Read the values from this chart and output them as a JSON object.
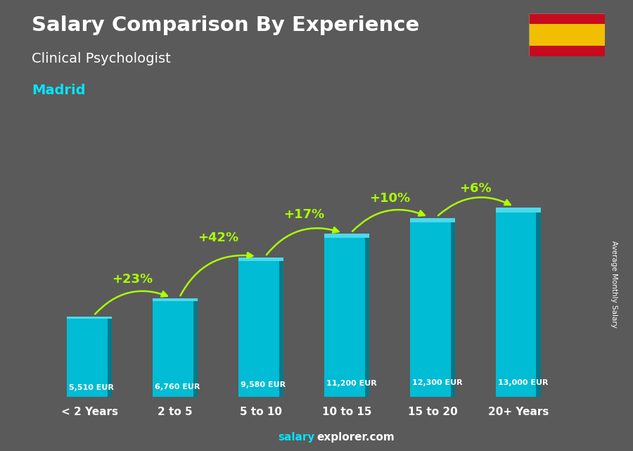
{
  "title_line1": "Salary Comparison By Experience",
  "title_line2": "Clinical Psychologist",
  "city": "Madrid",
  "categories": [
    "< 2 Years",
    "2 to 5",
    "5 to 10",
    "10 to 15",
    "15 to 20",
    "20+ Years"
  ],
  "values": [
    5510,
    6760,
    9580,
    11200,
    12300,
    13000
  ],
  "salary_labels": [
    "5,510 EUR",
    "6,760 EUR",
    "9,580 EUR",
    "11,200 EUR",
    "12,300 EUR",
    "13,000 EUR"
  ],
  "pct_labels": [
    "+23%",
    "+42%",
    "+17%",
    "+10%",
    "+6%"
  ],
  "bar_color_main": "#00bcd4",
  "bar_color_light": "#4dd9ec",
  "bar_color_dark": "#007a8a",
  "bg_color": "#5a5a5a",
  "text_color_white": "#ffffff",
  "text_color_cyan": "#00e5ff",
  "text_color_green": "#aaff00",
  "ylabel_text": "Average Monthly Salary",
  "ylim_max": 15500,
  "bar_width": 0.52,
  "flag_red": "#c60b1e",
  "flag_yellow": "#f1bf00"
}
